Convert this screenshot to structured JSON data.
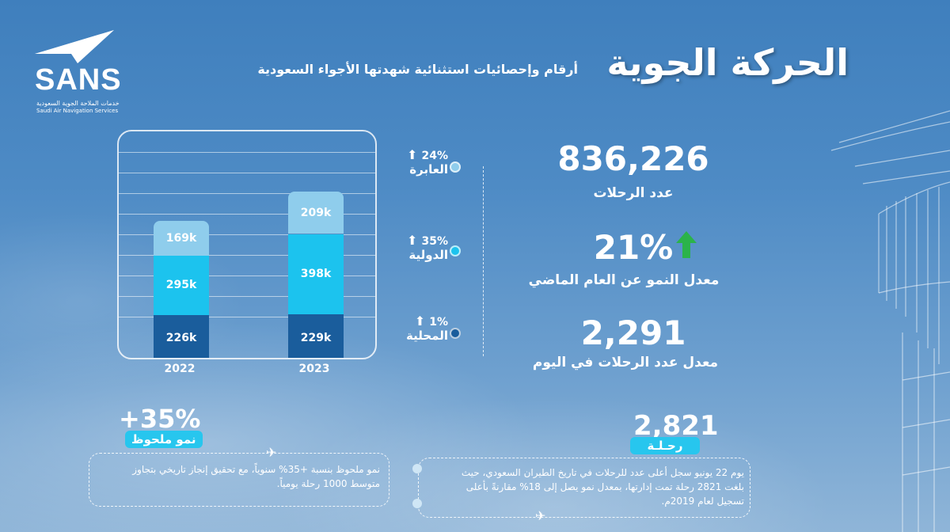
{
  "logo": {
    "wordmark": "SANS",
    "arabic_name": "خدمات الملاحة الجوية السعودية",
    "english_name": "Saudi Air Navigation Services"
  },
  "header": {
    "title": "الحركة الجوية",
    "subtitle": "أرقام وإحصائيات استثنائية شهدتها الأجواء السعودية"
  },
  "chart_data": {
    "type": "bar",
    "stacked": true,
    "categories": [
      "2022",
      "2023"
    ],
    "series": [
      {
        "name": "المحلية",
        "values": [
          226,
          229
        ],
        "labels": [
          "226k",
          "229k"
        ],
        "color": "#1a5d9c"
      },
      {
        "name": "الدولية",
        "values": [
          295,
          398
        ],
        "labels": [
          "295k",
          "398k"
        ],
        "color": "#1cc3ee"
      },
      {
        "name": "العابرة",
        "values": [
          169,
          209
        ],
        "labels": [
          "169k",
          "209k"
        ],
        "color": "#8fcdec"
      }
    ]
  },
  "legend": [
    {
      "pct": "24%",
      "label": "العابرة",
      "color": "#8fcdec"
    },
    {
      "pct": "35%",
      "label": "الدولية",
      "color": "#1cc3ee"
    },
    {
      "pct": "1%",
      "label": "المحلية",
      "color": "#1a5d9c"
    }
  ],
  "stats": {
    "flights_total": "836,226",
    "flights_total_label": "عدد الرحلات",
    "growth_rate": "21%",
    "growth_rate_label": "معدل النمو عن العام الماضي",
    "daily_avg": "2,291",
    "daily_avg_label": "معدل عدد الرحلات في اليوم"
  },
  "growth_box": {
    "value": "+35%",
    "tag": "نمو ملحوظ",
    "note_line1": "نمو ملحوظ بنسبة +35% سنوياً، مع تحقيق إنجاز تاريخي بتجاوز",
    "note_line2": "متوسط 1000 رحلة يومياً."
  },
  "record_box": {
    "value": "2,821",
    "tag": "رحـلـة",
    "note_line1": "يوم 22 يونيو سجل أعلى عدد للرحلات في تاريخ الطيران السعودي، حيث",
    "note_line2": "بلغت 2821 رحلة تمت إدارتها، بمعدل نمو يصل إلى 18% مقارنةً بأعلى",
    "note_line3": "تسجيل لعام 2019م."
  },
  "colors": {
    "accent_cyan": "#27c6ee",
    "growth_green": "#2bb34a"
  }
}
